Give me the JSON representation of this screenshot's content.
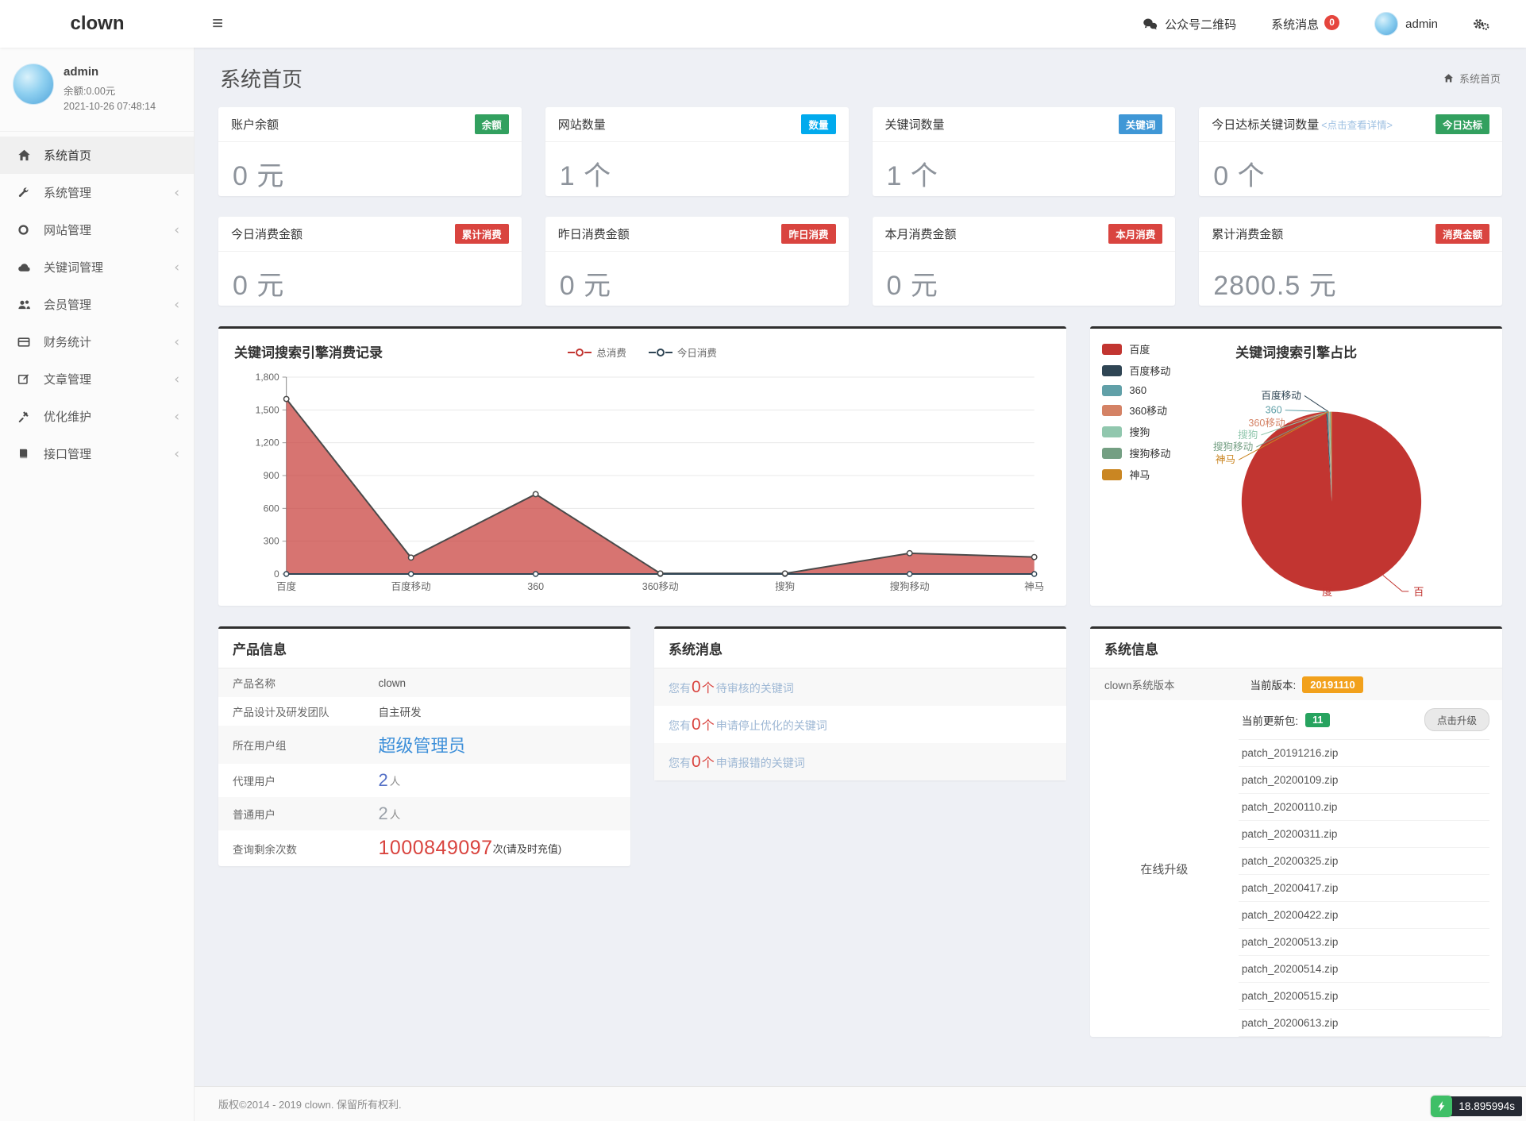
{
  "navbar": {
    "brand": "clown",
    "qr_label": "公众号二维码",
    "messages_label": "系统消息",
    "messages_count": "0",
    "username": "admin"
  },
  "sidebar": {
    "user": {
      "name": "admin",
      "balance": "余额:0.00元",
      "datetime": "2021-10-26 07:48:14"
    },
    "items": [
      {
        "id": "home",
        "label": "系统首页",
        "icon": "home",
        "active": true,
        "has_arrow": false
      },
      {
        "id": "system",
        "label": "系统管理",
        "icon": "wrench",
        "active": false,
        "has_arrow": true
      },
      {
        "id": "website",
        "label": "网站管理",
        "icon": "power",
        "active": false,
        "has_arrow": true
      },
      {
        "id": "keywords",
        "label": "关键词管理",
        "icon": "cloud",
        "active": false,
        "has_arrow": true
      },
      {
        "id": "members",
        "label": "会员管理",
        "icon": "users",
        "active": false,
        "has_arrow": true
      },
      {
        "id": "finance",
        "label": "财务统计",
        "icon": "card",
        "active": false,
        "has_arrow": true
      },
      {
        "id": "articles",
        "label": "文章管理",
        "icon": "edit",
        "active": false,
        "has_arrow": true
      },
      {
        "id": "optimize",
        "label": "优化维护",
        "icon": "gavel",
        "active": false,
        "has_arrow": true
      },
      {
        "id": "api",
        "label": "接口管理",
        "icon": "book",
        "active": false,
        "has_arrow": true
      }
    ],
    "arrow_glyph": "‹"
  },
  "page": {
    "title": "系统首页",
    "breadcrumb": "系统首页"
  },
  "stat_cards": [
    {
      "title": "账户余额",
      "badge": "余额",
      "badge_color": "#32a05f",
      "value": "0",
      "unit": "元",
      "link": ""
    },
    {
      "title": "网站数量",
      "badge": "数量",
      "badge_color": "#01AAED",
      "value": "1",
      "unit": "个",
      "link": ""
    },
    {
      "title": "关键词数量",
      "badge": "关键词",
      "badge_color": "#3f97d6",
      "value": "1",
      "unit": "个",
      "link": ""
    },
    {
      "title": "今日达标关键词数量",
      "badge": "今日达标",
      "badge_color": "#32a05f",
      "value": "0",
      "unit": "个",
      "link": "<点击查看详情>"
    },
    {
      "title": "今日消费金额",
      "badge": "累计消费",
      "badge_color": "#d9443f",
      "value": "0",
      "unit": "元",
      "link": ""
    },
    {
      "title": "昨日消费金额",
      "badge": "昨日消费",
      "badge_color": "#d9443f",
      "value": "0",
      "unit": "元",
      "link": ""
    },
    {
      "title": "本月消费金额",
      "badge": "本月消费",
      "badge_color": "#d9443f",
      "value": "0",
      "unit": "元",
      "link": ""
    },
    {
      "title": "累计消费金额",
      "badge": "消费金额",
      "badge_color": "#d9443f",
      "value": "2800.5",
      "unit": "元",
      "link": ""
    }
  ],
  "chart_data": [
    {
      "type": "area",
      "title": "关键词搜索引擎消费记录",
      "categories": [
        "百度",
        "百度移动",
        "360",
        "360移动",
        "搜狗",
        "搜狗移动",
        "神马"
      ],
      "series": [
        {
          "name": "总消费",
          "color": "#c23531",
          "values": [
            1600,
            150,
            730,
            5,
            5,
            190,
            155
          ]
        },
        {
          "name": "今日消费",
          "color": "#2f4554",
          "values": [
            0,
            0,
            0,
            0,
            0,
            0,
            0
          ]
        }
      ],
      "xlabel": "",
      "ylabel": "",
      "ylim": [
        0,
        1800
      ],
      "ytick_step": 300,
      "grid": true,
      "legend_position": "top-center",
      "area_fill": "rgba(199,62,58,0.72)",
      "line_stroke": "#4a4a4a"
    },
    {
      "type": "pie",
      "title": "关键词搜索引擎占比",
      "labels": [
        "百度",
        "百度移动",
        "360",
        "360移动",
        "搜狗",
        "搜狗移动",
        "神马"
      ],
      "values": [
        99.0,
        0.2,
        0.2,
        0.15,
        0.15,
        0.15,
        0.15
      ],
      "colors": [
        "#c23531",
        "#2f4554",
        "#61a0a8",
        "#d48265",
        "#91c7ae",
        "#749f83",
        "#ca8622"
      ],
      "legend_position": "left"
    }
  ],
  "product_info": {
    "title": "产品信息",
    "rows": [
      {
        "label": "产品名称",
        "value": "clown",
        "suffix": "",
        "kind": "text"
      },
      {
        "label": "产品设计及研发团队",
        "value": "自主研发",
        "suffix": "",
        "kind": "text"
      },
      {
        "label": "所在用户组",
        "value": "超级管理员",
        "suffix": "",
        "kind": "link-lg"
      },
      {
        "label": "代理用户",
        "value": "2",
        "suffix": "人",
        "kind": "count-blue"
      },
      {
        "label": "普通用户",
        "value": "2",
        "suffix": "人",
        "kind": "count-gray"
      },
      {
        "label": "查询剩余次数",
        "value": "1000849097",
        "suffix": "次(请及时充值)",
        "kind": "danger"
      }
    ]
  },
  "system_messages": {
    "title": "系统消息",
    "items": [
      {
        "prefix": "您有",
        "count": "0",
        "unit": "个",
        "text": "待审核的关键词"
      },
      {
        "prefix": "您有",
        "count": "0",
        "unit": "个",
        "text": "申请停止优化的关键词"
      },
      {
        "prefix": "您有",
        "count": "0",
        "unit": "个",
        "text": "申请报错的关键词"
      }
    ]
  },
  "system_info": {
    "title": "系统信息",
    "version_label": "clown系统版本",
    "current_version_label": "当前版本:",
    "version_badge": "20191110",
    "side_label": "在线升级",
    "package_label": "当前更新包:",
    "package_count": "11",
    "upgrade_button": "点击升级",
    "patches": [
      "patch_20191216.zip",
      "patch_20200109.zip",
      "patch_20200110.zip",
      "patch_20200311.zip",
      "patch_20200325.zip",
      "patch_20200417.zip",
      "patch_20200422.zip",
      "patch_20200513.zip",
      "patch_20200514.zip",
      "patch_20200515.zip",
      "patch_20200613.zip"
    ]
  },
  "footer": {
    "copyright": "版权©2014 - 2019 clown. 保留所有权利."
  },
  "perf": {
    "time": "18.895994s"
  }
}
